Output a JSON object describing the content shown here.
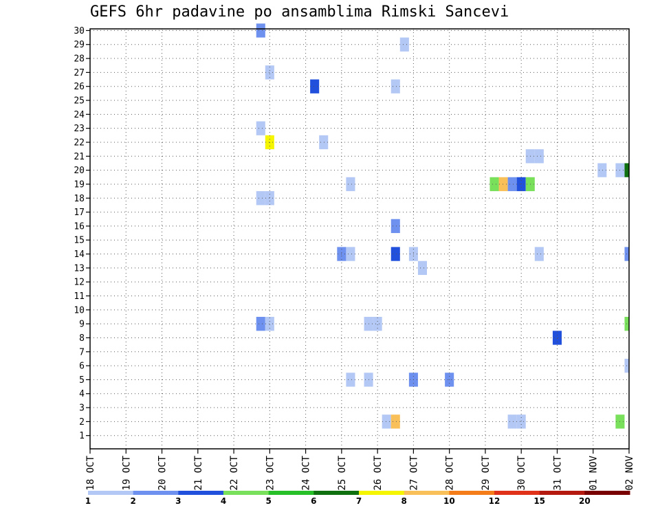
{
  "chart_data": {
    "type": "heatmap",
    "title": "GEFS 6hr padavine po ansamblima Rimski Sancevi",
    "y_ticks": [
      "1",
      "2",
      "3",
      "4",
      "5",
      "6",
      "7",
      "8",
      "9",
      "10",
      "11",
      "12",
      "13",
      "14",
      "15",
      "16",
      "17",
      "18",
      "19",
      "20",
      "21",
      "22",
      "23",
      "24",
      "25",
      "26",
      "27",
      "28",
      "29",
      "30"
    ],
    "x_ticks": [
      "18 OCT",
      "19 OCT",
      "20 OCT",
      "21 OCT",
      "22 OCT",
      "23 OCT",
      "24 OCT",
      "25 OCT",
      "26 OCT",
      "27 OCT",
      "28 OCT",
      "29 OCT",
      "30 OCT",
      "31 OCT",
      "01 NOV",
      "02 NOV"
    ],
    "x_range_days": [
      0,
      15
    ],
    "grid": true,
    "colorbar": {
      "colors": [
        "#b4c8f5",
        "#6e91ef",
        "#2050dc",
        "#78e05a",
        "#28c028",
        "#0f700f",
        "#f5f500",
        "#f9c05a",
        "#f57d19",
        "#e03219",
        "#b41a10",
        "#780000"
      ],
      "labels": [
        "1",
        "2",
        "3",
        "4",
        "5",
        "6",
        "7",
        "8",
        "10",
        "12",
        "15",
        "20"
      ]
    },
    "cells": [
      {
        "day": 4.75,
        "member": 30,
        "color": "#6e91ef"
      },
      {
        "day": 8.75,
        "member": 29,
        "color": "#b4c8f5"
      },
      {
        "day": 5.0,
        "member": 27,
        "color": "#b4c8f5"
      },
      {
        "day": 6.25,
        "member": 26,
        "color": "#2050dc"
      },
      {
        "day": 8.5,
        "member": 26,
        "color": "#b4c8f5"
      },
      {
        "day": 4.75,
        "member": 23,
        "color": "#b4c8f5"
      },
      {
        "day": 5.0,
        "member": 22,
        "color": "#f5f500"
      },
      {
        "day": 6.5,
        "member": 22,
        "color": "#b4c8f5"
      },
      {
        "day": 12.25,
        "member": 21,
        "color": "#b4c8f5"
      },
      {
        "day": 12.5,
        "member": 21,
        "color": "#b4c8f5"
      },
      {
        "day": 14.25,
        "member": 20,
        "color": "#b4c8f5"
      },
      {
        "day": 14.75,
        "member": 20,
        "color": "#b4c8f5"
      },
      {
        "day": 15.0,
        "member": 20,
        "color": "#0f700f"
      },
      {
        "day": 7.25,
        "member": 19,
        "color": "#b4c8f5"
      },
      {
        "day": 11.25,
        "member": 19,
        "color": "#78e05a"
      },
      {
        "day": 11.5,
        "member": 19,
        "color": "#f9c05a"
      },
      {
        "day": 11.75,
        "member": 19,
        "color": "#6e91ef"
      },
      {
        "day": 12.0,
        "member": 19,
        "color": "#2050dc"
      },
      {
        "day": 12.25,
        "member": 19,
        "color": "#78e05a"
      },
      {
        "day": 4.75,
        "member": 18,
        "color": "#b4c8f5"
      },
      {
        "day": 5.0,
        "member": 18,
        "color": "#b4c8f5"
      },
      {
        "day": 8.5,
        "member": 16,
        "color": "#6e91ef"
      },
      {
        "day": 7.0,
        "member": 14,
        "color": "#6e91ef"
      },
      {
        "day": 7.25,
        "member": 14,
        "color": "#b4c8f5"
      },
      {
        "day": 8.5,
        "member": 14,
        "color": "#2050dc"
      },
      {
        "day": 9.0,
        "member": 14,
        "color": "#b4c8f5"
      },
      {
        "day": 12.5,
        "member": 14,
        "color": "#b4c8f5"
      },
      {
        "day": 15.0,
        "member": 14,
        "color": "#6e91ef"
      },
      {
        "day": 9.25,
        "member": 13,
        "color": "#b4c8f5"
      },
      {
        "day": 4.75,
        "member": 9,
        "color": "#6e91ef"
      },
      {
        "day": 5.0,
        "member": 9,
        "color": "#b4c8f5"
      },
      {
        "day": 7.75,
        "member": 9,
        "color": "#b4c8f5"
      },
      {
        "day": 8.0,
        "member": 9,
        "color": "#b4c8f5"
      },
      {
        "day": 15.0,
        "member": 9,
        "color": "#78e05a"
      },
      {
        "day": 13.0,
        "member": 8,
        "color": "#2050dc"
      },
      {
        "day": 15.0,
        "member": 6,
        "color": "#b4c8f5"
      },
      {
        "day": 7.25,
        "member": 5,
        "color": "#b4c8f5"
      },
      {
        "day": 7.75,
        "member": 5,
        "color": "#b4c8f5"
      },
      {
        "day": 9.0,
        "member": 5,
        "color": "#6e91ef"
      },
      {
        "day": 10.0,
        "member": 5,
        "color": "#6e91ef"
      },
      {
        "day": 8.25,
        "member": 2,
        "color": "#b4c8f5"
      },
      {
        "day": 8.5,
        "member": 2,
        "color": "#f9c05a"
      },
      {
        "day": 11.75,
        "member": 2,
        "color": "#b4c8f5"
      },
      {
        "day": 12.0,
        "member": 2,
        "color": "#b4c8f5"
      },
      {
        "day": 14.75,
        "member": 2,
        "color": "#78e05a"
      }
    ]
  }
}
